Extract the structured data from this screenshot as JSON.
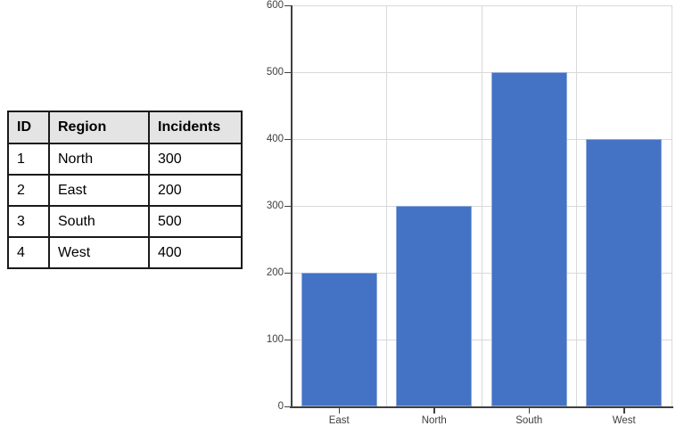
{
  "table": {
    "headers": [
      "ID",
      "Region",
      "Incidents"
    ],
    "rows": [
      [
        "1",
        "North",
        "300"
      ],
      [
        "2",
        "East",
        "200"
      ],
      [
        "3",
        "South",
        "500"
      ],
      [
        "4",
        "West",
        "400"
      ]
    ],
    "header_bg": "#e4e4e4",
    "border_color": "#1a1a1a"
  },
  "chart_data": {
    "type": "bar",
    "categories": [
      "East",
      "North",
      "South",
      "West"
    ],
    "values": [
      200,
      300,
      500,
      400
    ],
    "title": "",
    "xlabel": "",
    "ylabel": "",
    "ylim": [
      0,
      600
    ],
    "yticks": [
      0,
      100,
      200,
      300,
      400,
      500,
      600
    ],
    "grid": true,
    "legend": false,
    "bar_width_ratio": 0.8,
    "colors": {
      "bar": "#4472c4",
      "bar_edge": "#8faadc",
      "gridline": "#d9d9d9",
      "axis": "#404040",
      "tick_label": "#404040"
    }
  }
}
